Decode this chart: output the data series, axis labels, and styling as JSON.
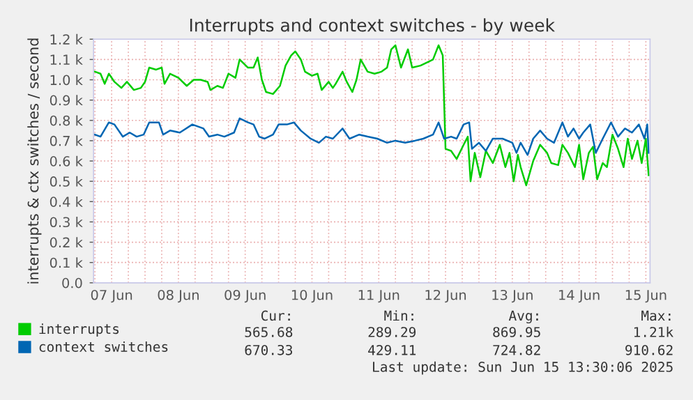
{
  "chart_data": {
    "type": "line",
    "title": "Interrupts and context switches - by week",
    "ylabel": "interrupts & ctx switches / second",
    "xlim": [
      "2025-06-07T05:30",
      "2025-06-15T13:30"
    ],
    "ylim": [
      0,
      1.2
    ],
    "yticks": [
      {
        "value": 0,
        "label": "0.0"
      },
      {
        "value": 0.1,
        "label": "0.1 k"
      },
      {
        "value": 0.2,
        "label": "0.2 k"
      },
      {
        "value": 0.3,
        "label": "0.3 k"
      },
      {
        "value": 0.4,
        "label": "0.4 k"
      },
      {
        "value": 0.5,
        "label": "0.5 k"
      },
      {
        "value": 0.6,
        "label": "0.6 k"
      },
      {
        "value": 0.7,
        "label": "0.7 k"
      },
      {
        "value": 0.8,
        "label": "0.8 k"
      },
      {
        "value": 0.9,
        "label": "0.9 k"
      },
      {
        "value": 1.0,
        "label": "1.0 k"
      },
      {
        "value": 1.1,
        "label": "1.1 k"
      },
      {
        "value": 1.2,
        "label": "1.2 k"
      }
    ],
    "xticks": [
      {
        "value": "2025-06-07T06:00",
        "label": null
      },
      {
        "value": "2025-06-07T12:00",
        "label": "07 Jun"
      },
      {
        "value": "2025-06-07T18:00",
        "label": null
      },
      {
        "value": "2025-06-08T00:00",
        "label": null
      },
      {
        "value": "2025-06-08T06:00",
        "label": null
      },
      {
        "value": "2025-06-08T12:00",
        "label": "08 Jun"
      },
      {
        "value": "2025-06-08T18:00",
        "label": null
      },
      {
        "value": "2025-06-09T00:00",
        "label": null
      },
      {
        "value": "2025-06-09T06:00",
        "label": null
      },
      {
        "value": "2025-06-09T12:00",
        "label": "09 Jun"
      },
      {
        "value": "2025-06-09T18:00",
        "label": null
      },
      {
        "value": "2025-06-10T00:00",
        "label": null
      },
      {
        "value": "2025-06-10T06:00",
        "label": null
      },
      {
        "value": "2025-06-10T12:00",
        "label": "10 Jun"
      },
      {
        "value": "2025-06-10T18:00",
        "label": null
      },
      {
        "value": "2025-06-11T00:00",
        "label": null
      },
      {
        "value": "2025-06-11T06:00",
        "label": null
      },
      {
        "value": "2025-06-11T12:00",
        "label": "11 Jun"
      },
      {
        "value": "2025-06-11T18:00",
        "label": null
      },
      {
        "value": "2025-06-12T00:00",
        "label": null
      },
      {
        "value": "2025-06-12T06:00",
        "label": null
      },
      {
        "value": "2025-06-12T12:00",
        "label": "12 Jun"
      },
      {
        "value": "2025-06-12T18:00",
        "label": null
      },
      {
        "value": "2025-06-13T00:00",
        "label": null
      },
      {
        "value": "2025-06-13T06:00",
        "label": null
      },
      {
        "value": "2025-06-13T12:00",
        "label": "13 Jun"
      },
      {
        "value": "2025-06-13T18:00",
        "label": null
      },
      {
        "value": "2025-06-14T00:00",
        "label": null
      },
      {
        "value": "2025-06-14T06:00",
        "label": null
      },
      {
        "value": "2025-06-14T12:00",
        "label": "14 Jun"
      },
      {
        "value": "2025-06-14T18:00",
        "label": null
      },
      {
        "value": "2025-06-15T00:00",
        "label": null
      },
      {
        "value": "2025-06-15T06:00",
        "label": null
      },
      {
        "value": "2025-06-15T12:00",
        "label": "15 Jun"
      }
    ],
    "grid": true,
    "legend": "bottom",
    "series": [
      {
        "name": "interrupts",
        "color": "#00cc00",
        "x": [
          "2025-06-07T06:00",
          "2025-06-07T08:00",
          "2025-06-07T09:30",
          "2025-06-07T11:00",
          "2025-06-07T13:00",
          "2025-06-07T15:30",
          "2025-06-07T17:30",
          "2025-06-07T20:00",
          "2025-06-07T22:30",
          "2025-06-08T00:00",
          "2025-06-08T01:30",
          "2025-06-08T04:00",
          "2025-06-08T06:00",
          "2025-06-08T07:00",
          "2025-06-08T09:00",
          "2025-06-08T12:00",
          "2025-06-08T15:00",
          "2025-06-08T17:30",
          "2025-06-08T20:00",
          "2025-06-08T22:30",
          "2025-06-08T23:30",
          "2025-06-09T02:00",
          "2025-06-09T04:00",
          "2025-06-09T06:00",
          "2025-06-09T08:30",
          "2025-06-09T10:00",
          "2025-06-09T13:00",
          "2025-06-09T15:00",
          "2025-06-09T16:30",
          "2025-06-09T18:00",
          "2025-06-09T19:30",
          "2025-06-09T22:00",
          "2025-06-10T00:30",
          "2025-06-10T02:30",
          "2025-06-10T04:30",
          "2025-06-10T06:00",
          "2025-06-10T08:00",
          "2025-06-10T09:30",
          "2025-06-10T12:00",
          "2025-06-10T14:00",
          "2025-06-10T15:30",
          "2025-06-10T18:00",
          "2025-06-10T19:30",
          "2025-06-10T20:30",
          "2025-06-10T23:00",
          "2025-06-11T00:30",
          "2025-06-11T02:30",
          "2025-06-11T04:00",
          "2025-06-11T05:30",
          "2025-06-11T08:00",
          "2025-06-11T10:30",
          "2025-06-11T13:00",
          "2025-06-11T15:00",
          "2025-06-11T16:30",
          "2025-06-11T18:00",
          "2025-06-11T20:00",
          "2025-06-11T22:30",
          "2025-06-12T00:00",
          "2025-06-12T03:00",
          "2025-06-12T06:00",
          "2025-06-12T07:30",
          "2025-06-12T09:30",
          "2025-06-12T11:00",
          "2025-06-12T12:00",
          "2025-06-12T14:00",
          "2025-06-12T16:00",
          "2025-06-12T18:30",
          "2025-06-12T20:00",
          "2025-06-12T21:00",
          "2025-06-12T22:30",
          "2025-06-13T00:30",
          "2025-06-13T02:30",
          "2025-06-13T05:00",
          "2025-06-13T07:30",
          "2025-06-13T09:30",
          "2025-06-13T11:00",
          "2025-06-13T12:30",
          "2025-06-13T14:00",
          "2025-06-13T15:00",
          "2025-06-13T17:00",
          "2025-06-13T19:30",
          "2025-06-13T22:00",
          "2025-06-14T00:30",
          "2025-06-14T02:00",
          "2025-06-14T04:30",
          "2025-06-14T06:00",
          "2025-06-14T08:00",
          "2025-06-14T10:30",
          "2025-06-14T12:00",
          "2025-06-14T13:30",
          "2025-06-14T15:30",
          "2025-06-14T17:00",
          "2025-06-14T18:30",
          "2025-06-14T20:30",
          "2025-06-14T22:00",
          "2025-06-15T00:00",
          "2025-06-15T02:00",
          "2025-06-15T04:00",
          "2025-06-15T05:30",
          "2025-06-15T07:00",
          "2025-06-15T09:00",
          "2025-06-15T10:30",
          "2025-06-15T12:00",
          "2025-06-15T13:00"
        ],
        "values": [
          1.04,
          1.03,
          0.98,
          1.03,
          0.99,
          0.96,
          0.99,
          0.95,
          0.96,
          0.99,
          1.06,
          1.05,
          1.06,
          0.98,
          1.03,
          1.01,
          0.97,
          1.0,
          1.0,
          0.99,
          0.95,
          0.97,
          0.96,
          1.03,
          1.01,
          1.1,
          1.06,
          1.06,
          1.11,
          1.0,
          0.94,
          0.93,
          0.97,
          1.07,
          1.12,
          1.14,
          1.1,
          1.04,
          1.02,
          1.03,
          0.95,
          0.99,
          0.96,
          0.98,
          1.04,
          0.99,
          0.94,
          1.0,
          1.1,
          1.04,
          1.03,
          1.04,
          1.06,
          1.15,
          1.17,
          1.06,
          1.15,
          1.06,
          1.07,
          1.09,
          1.1,
          1.17,
          1.12,
          0.66,
          0.65,
          0.61,
          0.68,
          0.72,
          0.5,
          0.64,
          0.52,
          0.65,
          0.59,
          0.68,
          0.57,
          0.64,
          0.5,
          0.63,
          0.57,
          0.48,
          0.6,
          0.68,
          0.64,
          0.59,
          0.58,
          0.68,
          0.64,
          0.57,
          0.68,
          0.51,
          0.64,
          0.67,
          0.51,
          0.59,
          0.57,
          0.73,
          0.66,
          0.57,
          0.71,
          0.61,
          0.7,
          0.59,
          0.71,
          0.53
        ]
      },
      {
        "name": "context switches",
        "color": "#0066b3",
        "x": [
          "2025-06-07T06:00",
          "2025-06-07T08:00",
          "2025-06-07T11:00",
          "2025-06-07T13:00",
          "2025-06-07T16:00",
          "2025-06-07T18:30",
          "2025-06-07T21:00",
          "2025-06-07T23:30",
          "2025-06-08T01:30",
          "2025-06-08T05:00",
          "2025-06-08T06:30",
          "2025-06-08T09:00",
          "2025-06-08T12:30",
          "2025-06-08T17:00",
          "2025-06-08T21:00",
          "2025-06-08T23:00",
          "2025-06-09T02:00",
          "2025-06-09T04:30",
          "2025-06-09T08:00",
          "2025-06-09T10:00",
          "2025-06-09T13:00",
          "2025-06-09T15:00",
          "2025-06-09T17:00",
          "2025-06-09T19:00",
          "2025-06-09T22:00",
          "2025-06-10T00:00",
          "2025-06-10T03:00",
          "2025-06-10T05:30",
          "2025-06-10T08:00",
          "2025-06-10T11:30",
          "2025-06-10T14:30",
          "2025-06-10T17:00",
          "2025-06-10T19:30",
          "2025-06-10T23:00",
          "2025-06-11T01:30",
          "2025-06-11T05:00",
          "2025-06-11T08:00",
          "2025-06-11T11:30",
          "2025-06-11T15:00",
          "2025-06-11T18:00",
          "2025-06-11T21:30",
          "2025-06-12T01:00",
          "2025-06-12T04:00",
          "2025-06-12T07:30",
          "2025-06-12T09:30",
          "2025-06-12T11:30",
          "2025-06-12T14:00",
          "2025-06-12T16:00",
          "2025-06-12T18:30",
          "2025-06-12T20:30",
          "2025-06-12T21:30",
          "2025-06-13T00:00",
          "2025-06-13T02:30",
          "2025-06-13T05:00",
          "2025-06-13T08:30",
          "2025-06-13T12:00",
          "2025-06-13T13:30",
          "2025-06-13T15:00",
          "2025-06-13T17:30",
          "2025-06-13T19:30",
          "2025-06-13T22:00",
          "2025-06-14T00:30",
          "2025-06-14T03:00",
          "2025-06-14T06:00",
          "2025-06-14T08:00",
          "2025-06-14T10:00",
          "2025-06-14T12:00",
          "2025-06-14T13:30",
          "2025-06-14T16:00",
          "2025-06-14T18:00",
          "2025-06-14T20:30",
          "2025-06-14T23:30",
          "2025-06-15T02:00",
          "2025-06-15T04:30",
          "2025-06-15T07:00",
          "2025-06-15T09:30",
          "2025-06-15T11:30",
          "2025-06-15T12:30",
          "2025-06-15T13:00"
        ],
        "values": [
          0.73,
          0.72,
          0.79,
          0.78,
          0.72,
          0.74,
          0.72,
          0.73,
          0.79,
          0.79,
          0.73,
          0.75,
          0.74,
          0.78,
          0.76,
          0.72,
          0.73,
          0.72,
          0.74,
          0.81,
          0.79,
          0.78,
          0.72,
          0.71,
          0.73,
          0.78,
          0.78,
          0.79,
          0.75,
          0.71,
          0.69,
          0.72,
          0.71,
          0.76,
          0.71,
          0.73,
          0.72,
          0.71,
          0.69,
          0.7,
          0.69,
          0.7,
          0.71,
          0.73,
          0.79,
          0.71,
          0.72,
          0.71,
          0.78,
          0.79,
          0.66,
          0.69,
          0.65,
          0.71,
          0.71,
          0.69,
          0.64,
          0.69,
          0.63,
          0.71,
          0.75,
          0.71,
          0.69,
          0.79,
          0.72,
          0.76,
          0.71,
          0.74,
          0.78,
          0.64,
          0.71,
          0.79,
          0.72,
          0.76,
          0.74,
          0.78,
          0.71,
          0.78,
          0.64
        ]
      }
    ],
    "annotations": [
      "Cur:",
      "Min:",
      "Avg:",
      "Max:",
      "565.68",
      "289.29",
      "869.95",
      "1.21k",
      "670.33",
      "429.11",
      "724.82",
      "910.62",
      "Last update: Sun Jun 15 13:30:06 2025"
    ]
  }
}
